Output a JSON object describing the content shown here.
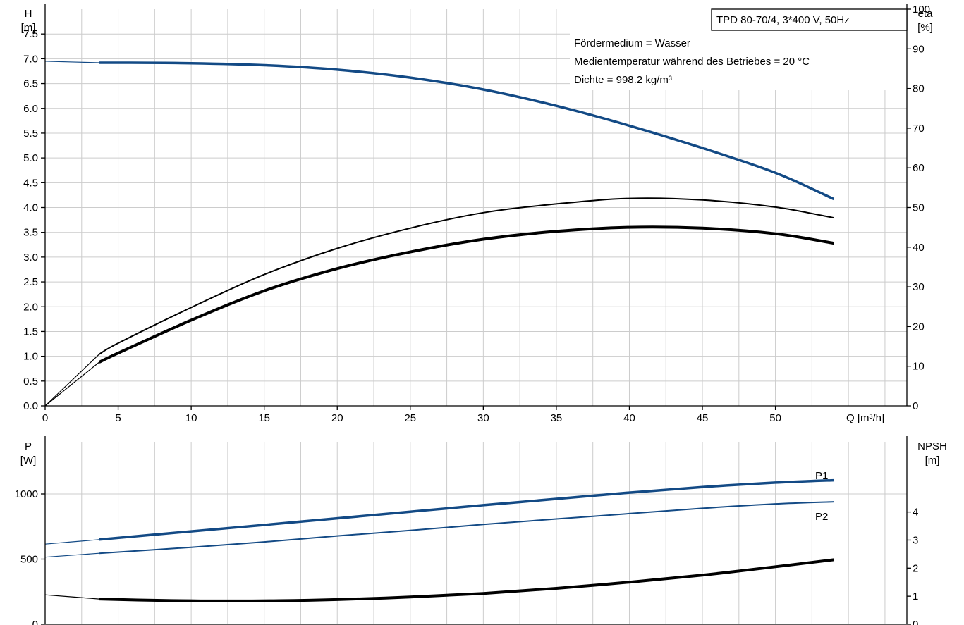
{
  "colors": {
    "grid": "#cccccc",
    "axis": "#000000",
    "blue": "#134a85",
    "black": "#000000"
  },
  "info": {
    "model": "TPD 80-70/4, 3*400 V, 50Hz",
    "lines": [
      "Fördermedium = Wasser",
      "Medientemperatur während des Betriebes = 20 °C",
      "Dichte = 998.2 kg/m³"
    ]
  },
  "chart_data": [
    {
      "type": "line",
      "xlabel": "Q [m³/h]",
      "xticks": [
        0,
        5,
        10,
        15,
        20,
        25,
        30,
        35,
        40,
        45,
        50
      ],
      "xlim": [
        0,
        59
      ],
      "ylabel_left": [
        "H",
        "[m]"
      ],
      "ylim_left": [
        0,
        8.0
      ],
      "yticks_left": [
        "0.0",
        "0.5",
        "1.0",
        "1.5",
        "2.0",
        "2.5",
        "3.0",
        "3.5",
        "4.0",
        "4.5",
        "5.0",
        "5.5",
        "6.0",
        "6.5",
        "7.0",
        "7.5"
      ],
      "ylabel_right": [
        "eta",
        "[%]"
      ],
      "ylim_right": [
        0,
        100
      ],
      "yticks_right": [
        "0",
        "10",
        "20",
        "30",
        "40",
        "50",
        "60",
        "70",
        "80",
        "90",
        "100"
      ],
      "grid": true,
      "series": [
        {
          "color": "blue",
          "width": 3.5,
          "axis": "left",
          "lead": [
            [
              0,
              6.95
            ],
            [
              3.7,
              6.92
            ]
          ],
          "points": [
            [
              3.7,
              6.92
            ],
            [
              5,
              6.92
            ],
            [
              10,
              6.91
            ],
            [
              15,
              6.87
            ],
            [
              20,
              6.78
            ],
            [
              25,
              6.62
            ],
            [
              30,
              6.38
            ],
            [
              35,
              6.05
            ],
            [
              40,
              5.65
            ],
            [
              45,
              5.2
            ],
            [
              50,
              4.7
            ],
            [
              54,
              4.17
            ]
          ]
        },
        {
          "color": "black",
          "width": 2,
          "axis": "right",
          "lead": [
            [
              0,
              0
            ],
            [
              3.7,
              13.0
            ]
          ],
          "points": [
            [
              3.7,
              13.0
            ],
            [
              5,
              15.8
            ],
            [
              10,
              24.8
            ],
            [
              15,
              33.1
            ],
            [
              20,
              39.7
            ],
            [
              25,
              44.8
            ],
            [
              30,
              48.7
            ],
            [
              35,
              50.9
            ],
            [
              40,
              52.3
            ],
            [
              45,
              51.9
            ],
            [
              50,
              50.1
            ],
            [
              54,
              47.4
            ]
          ]
        },
        {
          "color": "black",
          "width": 4,
          "axis": "right",
          "lead": [
            [
              0,
              0
            ],
            [
              3.7,
              11.0
            ]
          ],
          "points": [
            [
              3.7,
              11.0
            ],
            [
              5,
              13.3
            ],
            [
              10,
              21.6
            ],
            [
              15,
              29.0
            ],
            [
              20,
              34.6
            ],
            [
              25,
              38.8
            ],
            [
              30,
              42.0
            ],
            [
              35,
              44.0
            ],
            [
              40,
              45.0
            ],
            [
              45,
              44.8
            ],
            [
              50,
              43.4
            ],
            [
              54,
              41.0
            ]
          ]
        }
      ]
    },
    {
      "type": "line",
      "xlim": [
        0,
        59
      ],
      "ylabel_left": [
        "P",
        "[W]"
      ],
      "ylim_left": [
        0,
        1400
      ],
      "yticks_left": [
        "0",
        "500",
        "1000"
      ],
      "ylabel_right": [
        "NPSH",
        "[m]"
      ],
      "ylim_right": [
        0,
        6.5
      ],
      "yticks_right": [
        "0",
        "1",
        "2",
        "3",
        "4"
      ],
      "grid": true,
      "series": [
        {
          "name": "P1",
          "color": "blue",
          "width": 3.5,
          "axis": "left",
          "lead": [
            [
              0,
              615
            ],
            [
              3.7,
              650
            ]
          ],
          "points": [
            [
              3.7,
              650
            ],
            [
              10,
              713
            ],
            [
              15,
              762
            ],
            [
              20,
              813
            ],
            [
              25,
              864
            ],
            [
              30,
              914
            ],
            [
              35,
              962
            ],
            [
              40,
              1010
            ],
            [
              45,
              1053
            ],
            [
              50,
              1087
            ],
            [
              54,
              1105
            ]
          ]
        },
        {
          "name": "P2",
          "color": "blue",
          "width": 2,
          "axis": "left",
          "lead": [
            [
              0,
              515
            ],
            [
              3.7,
              545
            ]
          ],
          "points": [
            [
              3.7,
              545
            ],
            [
              10,
              591
            ],
            [
              15,
              632
            ],
            [
              20,
              678
            ],
            [
              25,
              720
            ],
            [
              30,
              766
            ],
            [
              35,
              808
            ],
            [
              40,
              849
            ],
            [
              45,
              890
            ],
            [
              50,
              924
            ],
            [
              54,
              940
            ]
          ]
        },
        {
          "color": "black",
          "width": 4,
          "axis": "right",
          "lead": [
            [
              0,
              1.05
            ],
            [
              3.7,
              0.9
            ]
          ],
          "points": [
            [
              3.7,
              0.9
            ],
            [
              8,
              0.85
            ],
            [
              12,
              0.83
            ],
            [
              16,
              0.84
            ],
            [
              20,
              0.88
            ],
            [
              25,
              0.97
            ],
            [
              30,
              1.1
            ],
            [
              35,
              1.28
            ],
            [
              40,
              1.5
            ],
            [
              45,
              1.75
            ],
            [
              50,
              2.05
            ],
            [
              54,
              2.3
            ]
          ]
        }
      ]
    }
  ]
}
